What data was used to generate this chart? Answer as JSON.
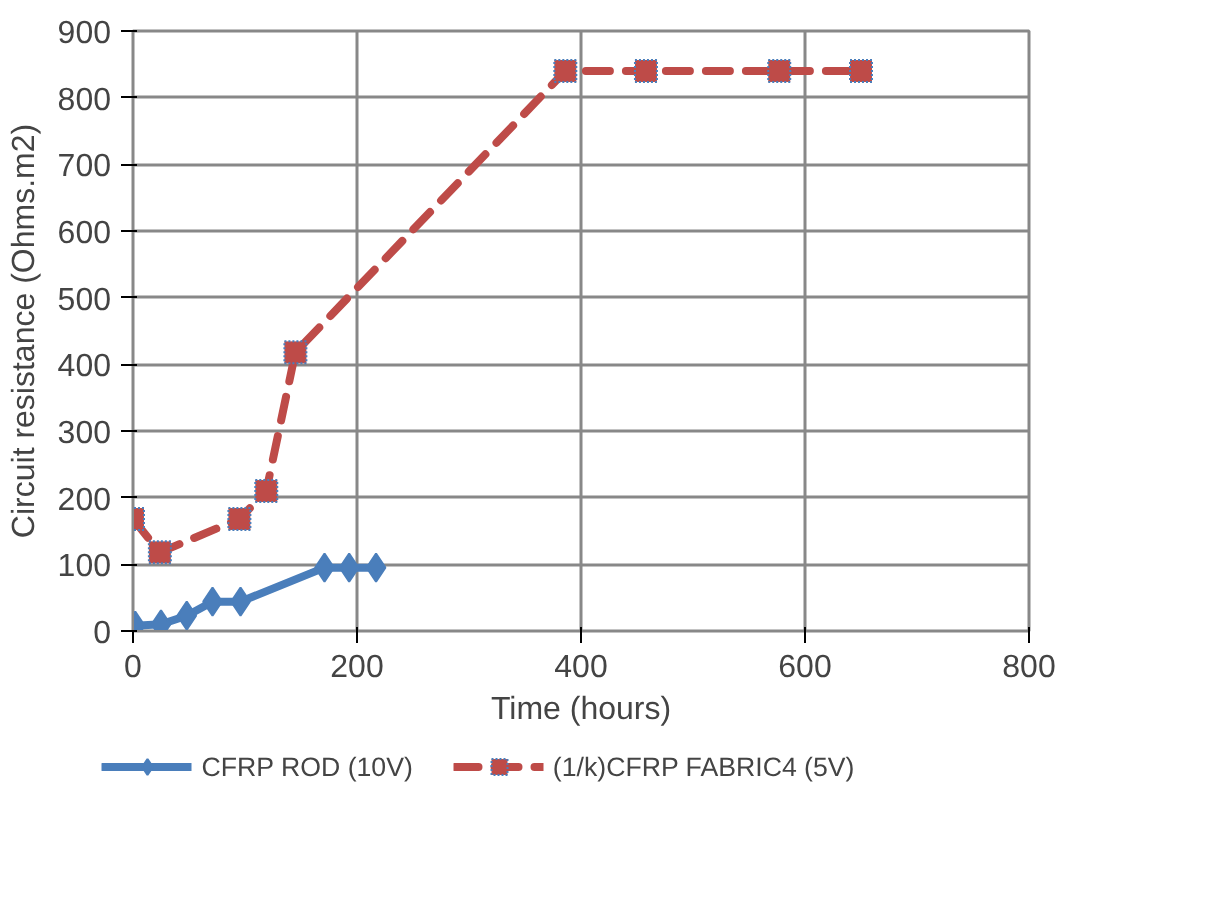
{
  "chart_data": {
    "type": "line",
    "xlabel": "Time (hours)",
    "ylabel": "Circuit resistance (Ohms.m2)",
    "xlim": [
      0,
      800
    ],
    "xticks": [
      0,
      200,
      400,
      600,
      800
    ],
    "ylim": [
      0,
      900
    ],
    "yticks": [
      0,
      100,
      200,
      300,
      400,
      500,
      600,
      700,
      800,
      900
    ],
    "grid": true,
    "legend": "bottom",
    "series": [
      {
        "name": "CFRP ROD (10V)",
        "color": "#4a7ebb",
        "marker": "diamond",
        "line_style": "solid",
        "x": [
          2,
          25,
          48,
          71,
          96,
          171,
          193,
          217
        ],
        "values": [
          8,
          10,
          23,
          44,
          44,
          95,
          95,
          95
        ]
      },
      {
        "name": "(1/k)CFRP FABRIC4 (5V)",
        "color": "#be4b48",
        "marker": "square",
        "line_style": "dashed",
        "x": [
          0,
          24,
          95,
          119,
          145,
          386,
          458,
          577,
          650
        ],
        "values": [
          168,
          118,
          168,
          210,
          418,
          840,
          840,
          840,
          840
        ]
      }
    ]
  }
}
